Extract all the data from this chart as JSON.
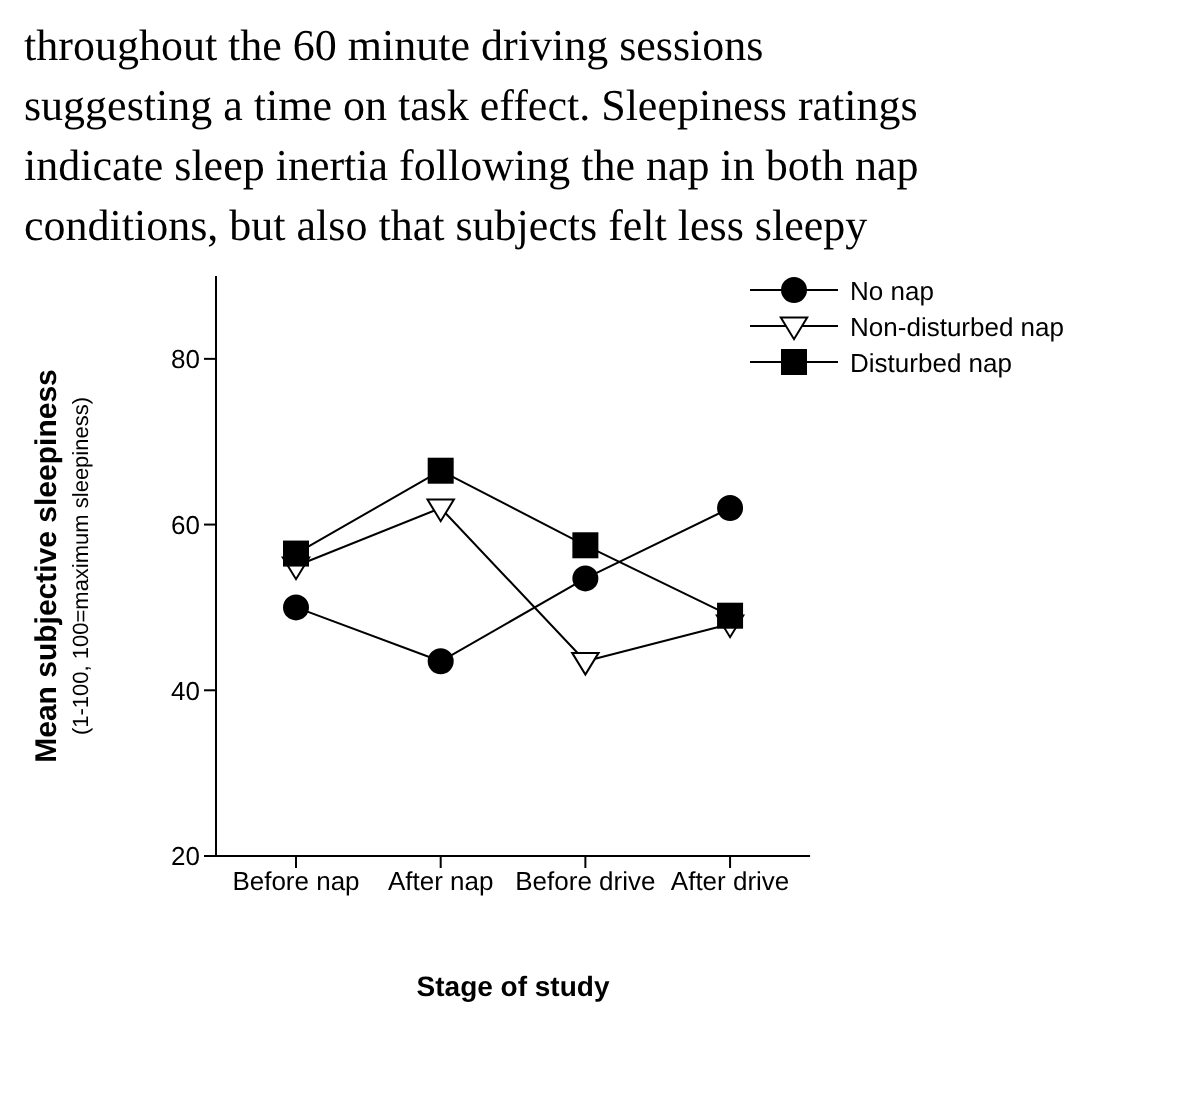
{
  "chart_data": {
    "type": "line",
    "xlabel": "Stage of study",
    "ylabel": "Mean subjective sleepiness",
    "categories": [
      "Before nap",
      "After nap",
      "Before drive",
      "After drive"
    ],
    "series": [
      {
        "name": "No nap",
        "color": "#000000",
        "marker": "circle",
        "values": [
          50,
          43.5,
          53.5,
          62
        ]
      },
      {
        "name": "Non-disturbed nap",
        "color": "#000000",
        "marker": "triangle",
        "values": [
          55,
          62,
          43.5,
          48
        ]
      },
      {
        "name": "Disturbed nap",
        "color": "#000000",
        "marker": "square",
        "values": [
          56.5,
          66.5,
          57.5,
          49
        ]
      }
    ],
    "ylim": [
      20,
      90
    ],
    "yticks": [
      20,
      40,
      60,
      80
    ],
    "legend": "top right",
    "line_style": "solid",
    "annotations": [
      "(1-100, 100=maximum sleepiness)",
      "throughout the 60 minute driving sessions",
      "suggesting a time on task effect. Sleepiness ratings",
      "indicate sleep inertia following the nap in both nap",
      "conditions, but also that subjects felt less sleepy"
    ]
  }
}
